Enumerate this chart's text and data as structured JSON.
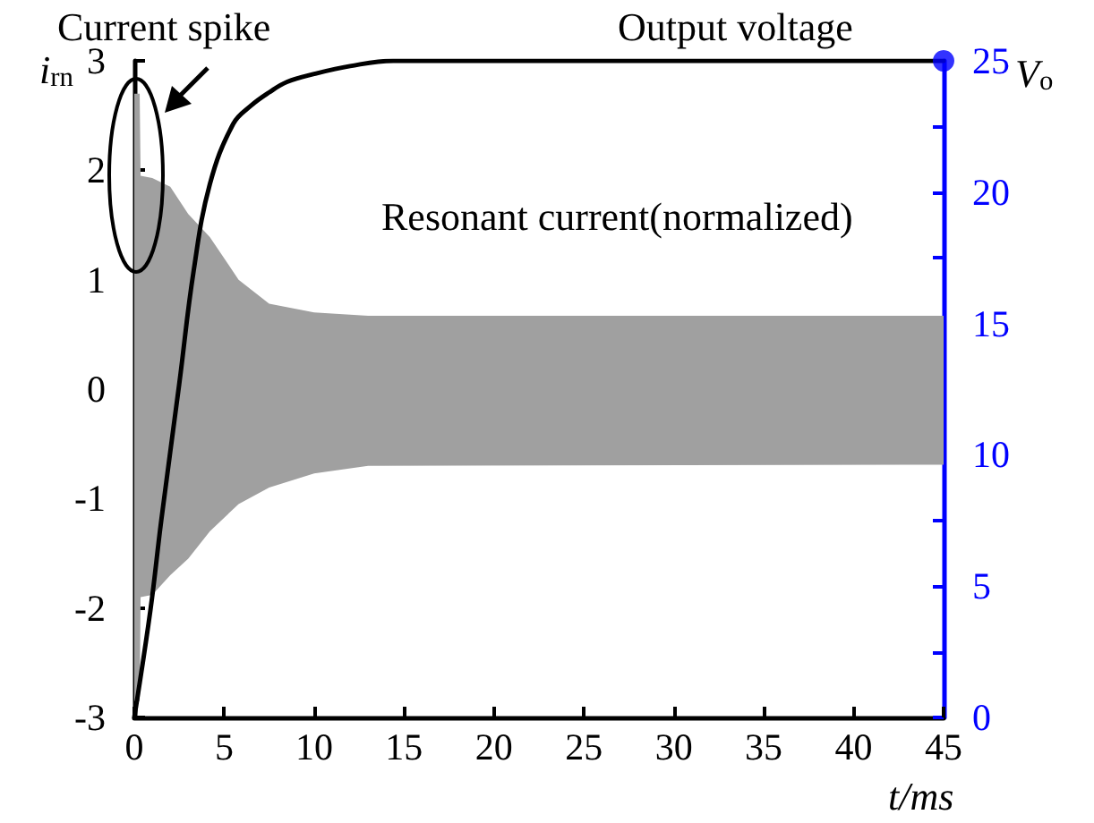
{
  "chart_data": {
    "type": "line",
    "xlabel": "t/ms",
    "ylabel": "i$_{rn}$",
    "y2label": "V$_{o}$",
    "annotations": [
      "Current spike",
      "Output voltage",
      "Resonant current(normalized)"
    ],
    "xlim": [
      0,
      45
    ],
    "xticks": [
      0,
      5,
      10,
      15,
      20,
      25,
      30,
      35,
      40,
      45
    ],
    "ylim": [
      -3,
      3
    ],
    "yticks": [
      -3,
      -2,
      -1,
      0,
      1,
      2,
      3
    ],
    "y2lim": [
      0,
      25
    ],
    "y2ticks": [
      0,
      {
        "value": 2.5,
        "label": null
      },
      5,
      {
        "value": 7.5,
        "label": null
      },
      10,
      {
        "value": 12.5,
        "label": null
      },
      15,
      {
        "value": 17.5,
        "label": null
      },
      20,
      {
        "value": 22.5,
        "label": null
      },
      25
    ],
    "grid": false,
    "series": [
      {
        "type": "area",
        "color": "#a0a0a0",
        "x": [
          0,
          0.3,
          0.35,
          1,
          2,
          3,
          4.2,
          5.8,
          7.5,
          10,
          13,
          45
        ],
        "values": [
          -2.85,
          -2.85,
          -1.9,
          -1.88,
          -1.7,
          -1.55,
          -1.3,
          -1.05,
          -0.9,
          -0.77,
          -0.7,
          -0.69
        ]
      },
      {
        "type": "area",
        "color": "#a0a0a0",
        "x": [
          0,
          0.3,
          0.35,
          1,
          2,
          3,
          4.2,
          5.8,
          7.5,
          10,
          13,
          45
        ],
        "values": [
          2.7,
          2.7,
          1.95,
          1.93,
          1.85,
          1.6,
          1.39,
          1.0,
          0.78,
          0.7,
          0.67,
          0.67
        ]
      },
      {
        "type": "line",
        "color": "#000000",
        "axis": "y2",
        "marker": "none",
        "x": [
          0,
          0.9,
          1.5,
          2.5,
          3.3,
          4.2,
          5.5,
          6.5,
          7.5,
          8.5,
          10,
          12,
          14.4,
          45
        ],
        "values": [
          0,
          4.1,
          7.5,
          12.7,
          17,
          20.3,
          22.6,
          23.3,
          23.8,
          24.2,
          24.5,
          24.8,
          25,
          25
        ]
      },
      {
        "type": "scatter",
        "color": "#0000ff",
        "axis": "y2",
        "marker": "circle",
        "x": [
          45
        ],
        "values": [
          25
        ]
      }
    ]
  }
}
